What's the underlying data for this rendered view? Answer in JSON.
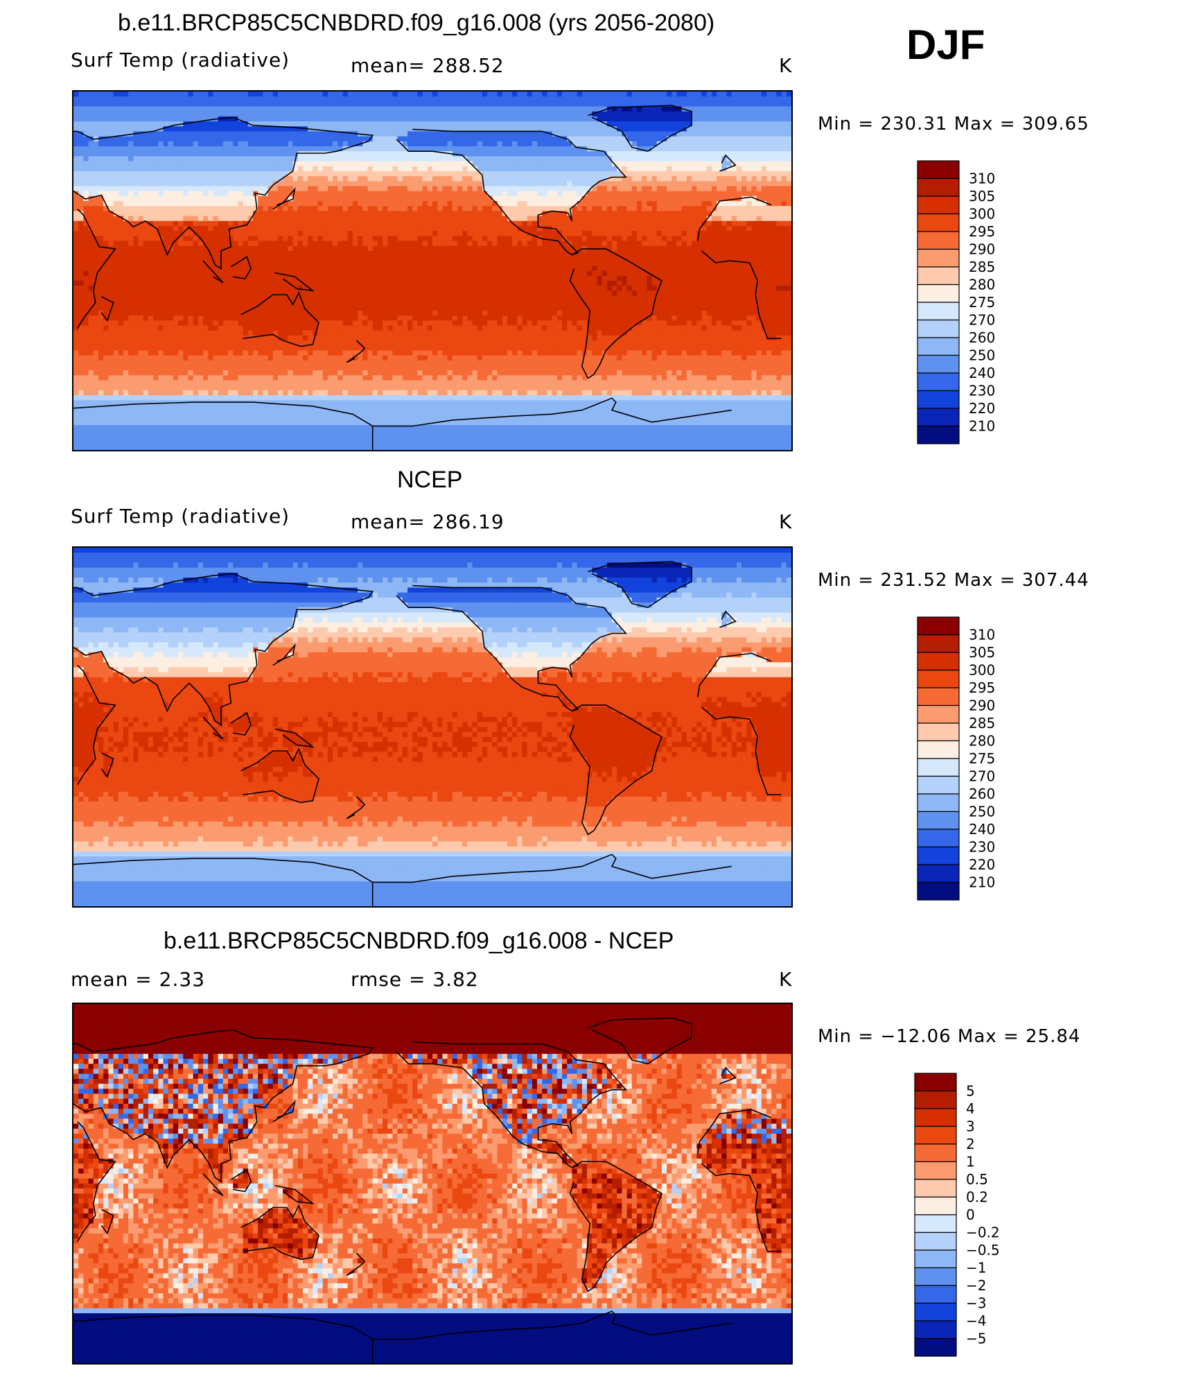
{
  "season": "DJF",
  "panels": [
    {
      "title": "b.e11.BRCP85C5CNBDRD.f09_g16.008 (yrs 2056-2080)",
      "left_label": "Surf Temp (radiative)",
      "center_label": "mean=  288.52",
      "units": "K",
      "minmax": "Min  =  230.31  Max  =  309.65"
    },
    {
      "title": "NCEP",
      "left_label": "Surf Temp (radiative)",
      "center_label": "mean=  286.19",
      "units": "K",
      "minmax": "Min  =  231.52  Max  =  307.44"
    },
    {
      "title": "b.e11.BRCP85C5CNBDRD.f09_g16.008 - NCEP",
      "left_label": "mean =     2.33",
      "center_label": "rmse =     3.82",
      "units": "K",
      "minmax": "Min  = −12.06  Max  =    25.84"
    }
  ],
  "chart_data": [
    {
      "type": "heatmap",
      "title": "b.e11.BRCP85C5CNBDRD.f09_g16.008 (yrs 2056-2080)",
      "variable": "Surf Temp (radiative)",
      "units": "K",
      "mean": 288.52,
      "min": 230.31,
      "max": 309.65,
      "colorbar_levels": [
        "310",
        "305",
        "300",
        "295",
        "290",
        "285",
        "280",
        "275",
        "270",
        "260",
        "250",
        "240",
        "230",
        "220",
        "210"
      ],
      "colorbar_colors": [
        "#8a0000",
        "#b41e00",
        "#d63000",
        "#ea4810",
        "#f66a36",
        "#fb9c70",
        "#fdcaad",
        "#fdeee2",
        "#d6e8fb",
        "#b3d1f9",
        "#8db7f5",
        "#5f92ef",
        "#3468e8",
        "#1243dc",
        "#0a26b8",
        "#020d80"
      ]
    },
    {
      "type": "heatmap",
      "title": "NCEP",
      "variable": "Surf Temp (radiative)",
      "units": "K",
      "mean": 286.19,
      "min": 231.52,
      "max": 307.44,
      "colorbar_levels": [
        "310",
        "305",
        "300",
        "295",
        "290",
        "285",
        "280",
        "275",
        "270",
        "260",
        "250",
        "240",
        "230",
        "220",
        "210"
      ],
      "colorbar_colors": [
        "#8a0000",
        "#b41e00",
        "#d63000",
        "#ea4810",
        "#f66a36",
        "#fb9c70",
        "#fdcaad",
        "#fdeee2",
        "#d6e8fb",
        "#b3d1f9",
        "#8db7f5",
        "#5f92ef",
        "#3468e8",
        "#1243dc",
        "#0a26b8",
        "#020d80"
      ]
    },
    {
      "type": "heatmap",
      "title": "b.e11.BRCP85C5CNBDRD.f09_g16.008 - NCEP",
      "units": "K",
      "mean": 2.33,
      "rmse": 3.82,
      "min": -12.06,
      "max": 25.84,
      "colorbar_levels": [
        "5",
        "4",
        "3",
        "2",
        "1",
        "0.5",
        "0.2",
        "0",
        "−0.2",
        "−0.5",
        "−1",
        "−2",
        "−3",
        "−4",
        "−5"
      ],
      "colorbar_colors": [
        "#8a0000",
        "#b41e00",
        "#d63000",
        "#ea4810",
        "#f66a36",
        "#fb9c70",
        "#fdcaad",
        "#fdeee2",
        "#d6e8fb",
        "#b3d1f9",
        "#8db7f5",
        "#5f92ef",
        "#3468e8",
        "#1243dc",
        "#0a26b8",
        "#020d80"
      ]
    }
  ]
}
